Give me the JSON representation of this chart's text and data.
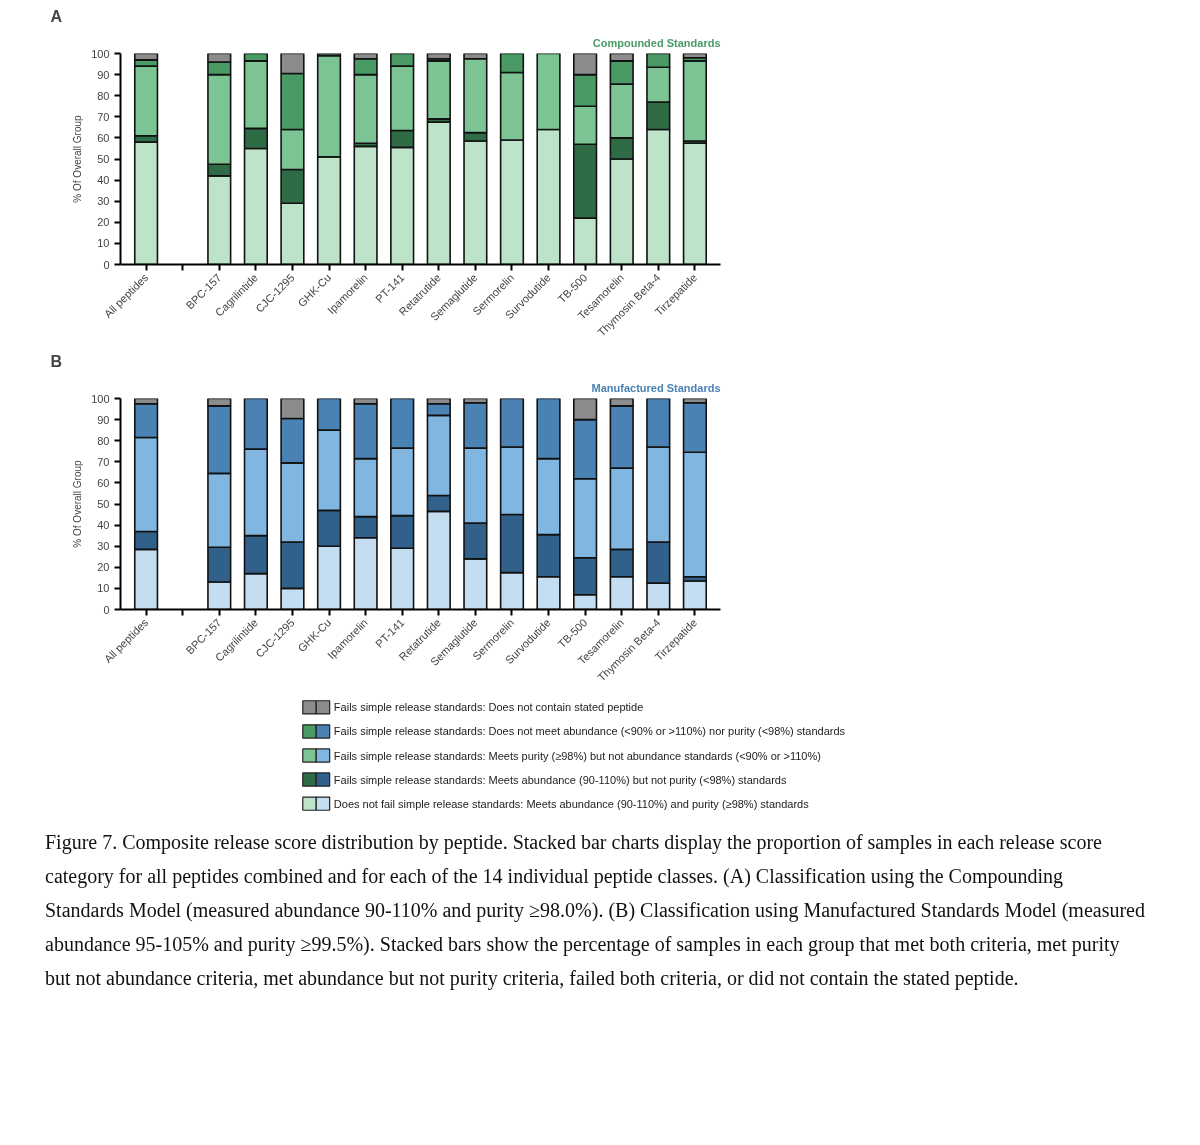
{
  "chart_data": [
    {
      "type": "bar",
      "title": "A",
      "subtitle": "Compounded Standards",
      "ylabel": "% Of Overall Group",
      "stacked": true,
      "categories": [
        "All peptides",
        null,
        "BPC-157",
        "Cagrilintide",
        "CJC-1295",
        "GHK-Cu",
        "Ipamorelin",
        "PT-141",
        "Retatrutide",
        "Semaglutide",
        "Sermorelin",
        "Survodutide",
        "TB-500",
        "Tesamorelin",
        "Thymosin Beta-4",
        "Tirzepatide"
      ],
      "ylim": [
        0,
        100
      ],
      "yticks": [
        0,
        10,
        20,
        30,
        40,
        50,
        60,
        70,
        80,
        90,
        100
      ],
      "grid": false,
      "legend": "bottom",
      "series": [
        {
          "name": "Does not fail simple release standards: Meets abundance (90-110%) and purity (≥98%) standards",
          "color": "#bde3c8",
          "values": [
            58,
            null,
            42,
            55,
            29,
            51,
            56,
            55.5,
            67.5,
            58.5,
            59,
            64,
            22,
            50,
            64,
            57.5
          ]
        },
        {
          "name": "Fails simple release standards: Meets abundance (90-110%) but not purity (<98%) standards",
          "color": "#2f6b45",
          "values": [
            3,
            null,
            5.5,
            9.5,
            16,
            0,
            1.5,
            8,
            1.5,
            4,
            0,
            0,
            35,
            10,
            13,
            1
          ]
        },
        {
          "name": "Fails simple release standards: Meets purity (≥98%) but not abundance standards (<90% or >110%)",
          "color": "#7cc493",
          "values": [
            33,
            null,
            42.5,
            32,
            19,
            48,
            32.5,
            30.5,
            27.5,
            35,
            32,
            36,
            18,
            25.5,
            16.5,
            38
          ]
        },
        {
          "name": "Fails simple release standards: Does not meet abundance (<90% or >110%) nor purity (<98%) standards",
          "color": "#4a9a66",
          "values": [
            3,
            null,
            6,
            3.5,
            26.5,
            1,
            7.5,
            6,
            1,
            0,
            9,
            0,
            15,
            11,
            6.5,
            1.5
          ]
        },
        {
          "name": "Fails simple release standards: Does not contain stated peptide",
          "color": "#8c8c8c",
          "values": [
            3,
            null,
            4,
            0,
            9.5,
            0,
            2.5,
            0,
            2.5,
            2.5,
            0,
            0,
            10,
            3.5,
            0,
            2
          ]
        }
      ]
    },
    {
      "type": "bar",
      "title": "B",
      "subtitle": "Manufactured Standards",
      "ylabel": "% Of Overall Group",
      "stacked": true,
      "categories": [
        "All peptides",
        null,
        "BPC-157",
        "Cagrilintide",
        "CJC-1295",
        "GHK-Cu",
        "Ipamorelin",
        "PT-141",
        "Retatrutide",
        "Semaglutide",
        "Sermorelin",
        "Survodutide",
        "TB-500",
        "Tesamorelin",
        "Thymosin Beta-4",
        "Tirzepatide"
      ],
      "ylim": [
        0,
        100
      ],
      "yticks": [
        0,
        10,
        20,
        30,
        40,
        50,
        60,
        70,
        80,
        90,
        100
      ],
      "grid": false,
      "legend": "bottom",
      "series": [
        {
          "name": "Does not fail simple release standards: Meets abundance (90-110%) and purity (≥98%) standards",
          "color": "#c4ddf1",
          "values": [
            28.5,
            null,
            13,
            17,
            10,
            30,
            34,
            29,
            46.5,
            24,
            17.5,
            15.5,
            7,
            15.5,
            12.5,
            13.5
          ]
        },
        {
          "name": "Fails simple release standards: Meets abundance (90-110%) but not purity (<98%) standards",
          "color": "#31608a",
          "values": [
            8.5,
            null,
            16.5,
            18,
            22,
            17,
            10,
            15.5,
            7.5,
            17,
            27.5,
            20,
            17.5,
            13,
            19.5,
            2
          ]
        },
        {
          "name": "Fails simple release standards: Meets purity (≥98%) but not abundance standards (<90% or >110%)",
          "color": "#80b6e0",
          "values": [
            44.5,
            null,
            35,
            41,
            37.5,
            38,
            27.5,
            32,
            38,
            35.5,
            32,
            36,
            37.5,
            38.5,
            45,
            59
          ]
        },
        {
          "name": "Fails simple release standards: Does not meet abundance (<90% or >110%) nor purity (<98%) standards",
          "color": "#4a82b4",
          "values": [
            16,
            null,
            32,
            24,
            21,
            15,
            26,
            23.5,
            5.5,
            21.5,
            23,
            28.5,
            28,
            29.5,
            23,
            23.5
          ]
        },
        {
          "name": "Fails simple release standards: Does not contain stated peptide",
          "color": "#8c8c8c",
          "values": [
            2.5,
            null,
            3.5,
            0,
            9.5,
            0,
            2.5,
            0,
            2.5,
            2,
            0,
            0,
            10,
            3.5,
            0,
            2
          ]
        }
      ],
      "annotations": [
        "Figure 7. Composite release score distribution by peptide. Stacked bar charts display the proportion of samples in each release score category for all peptides combined and for each of the 14 individual peptide classes. (A) Classification using the Compounding Standards Model (measured abundance 90-110% and purity ≥98.0%). (B) Classification using Manufactured Standards Model (measured abundance 95-105% and purity ≥99.5%). Stacked bars show the percentage of samples in each group that met both criteria, met purity but not abundance criteria, met abundance but not purity criteria, failed both criteria, or did not contain the stated peptide."
      ]
    }
  ]
}
